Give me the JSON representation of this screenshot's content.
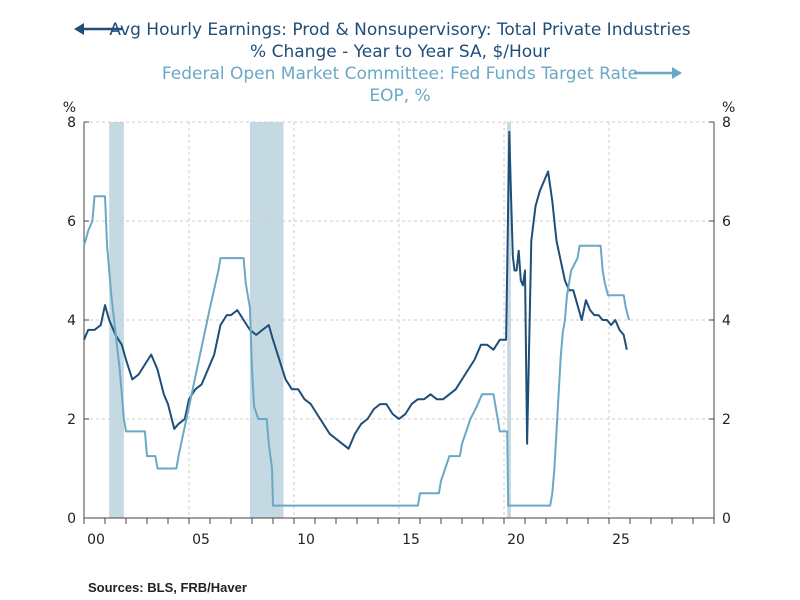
{
  "legend": {
    "series1_line1": "Avg Hourly Earnings: Prod & Nonsupervisory: Total Private Industries",
    "series1_line2": "% Change - Year to Year    SA, $/Hour",
    "series2_line1": "Federal Open Market Committee: Fed Funds Target Rate",
    "series2_line2": "EOP, %"
  },
  "source": "Sources:  BLS, FRB/Haver",
  "colors": {
    "earnings": "#1f4e79",
    "fedfunds": "#6aa8c4",
    "recession": "#c5d9e3",
    "grid": "#cccccc"
  },
  "chart_data": {
    "type": "line",
    "x_unit": "year",
    "xlim": [
      2000,
      2030
    ],
    "x_tick_labels": [
      "00",
      "05",
      "10",
      "15",
      "20",
      "25"
    ],
    "x_tick_values": [
      2000,
      2005,
      2010,
      2015,
      2020,
      2025
    ],
    "y_left": {
      "unit": "%",
      "ylim": [
        0,
        8
      ],
      "ticks": [
        "0",
        "2",
        "4",
        "6",
        "8"
      ]
    },
    "y_right": {
      "unit": "%",
      "ylim": [
        0,
        8
      ],
      "ticks": [
        "0",
        "2",
        "4",
        "6",
        "8"
      ]
    },
    "grid": true,
    "recessions": [
      [
        2001.2,
        2001.9
      ],
      [
        2007.9,
        2009.5
      ],
      [
        2020.15,
        2020.33
      ]
    ],
    "series": [
      {
        "axis": "left",
        "x": [
          2000.0,
          2000.2,
          2000.5,
          2000.8,
          2001.0,
          2001.2,
          2001.5,
          2001.8,
          2002.0,
          2002.3,
          2002.6,
          2002.9,
          2003.2,
          2003.5,
          2003.8,
          2004.0,
          2004.3,
          2004.5,
          2004.8,
          2005.0,
          2005.3,
          2005.6,
          2005.9,
          2006.2,
          2006.5,
          2006.8,
          2007.0,
          2007.3,
          2007.6,
          2007.9,
          2008.2,
          2008.5,
          2008.8,
          2009.0,
          2009.3,
          2009.6,
          2009.9,
          2010.2,
          2010.5,
          2010.8,
          2011.1,
          2011.4,
          2011.7,
          2012.0,
          2012.3,
          2012.6,
          2012.9,
          2013.2,
          2013.5,
          2013.8,
          2014.1,
          2014.4,
          2014.7,
          2015.0,
          2015.3,
          2015.6,
          2015.9,
          2016.2,
          2016.5,
          2016.8,
          2017.1,
          2017.4,
          2017.7,
          2018.0,
          2018.3,
          2018.6,
          2018.9,
          2019.2,
          2019.5,
          2019.8,
          2020.1,
          2020.25,
          2020.33,
          2020.42,
          2020.5,
          2020.6,
          2020.7,
          2020.8,
          2020.9,
          2021.0,
          2021.1,
          2021.3,
          2021.5,
          2021.7,
          2021.9,
          2022.1,
          2022.3,
          2022.5,
          2022.7,
          2022.9,
          2023.1,
          2023.3,
          2023.5,
          2023.7,
          2023.9,
          2024.1,
          2024.3,
          2024.5,
          2024.7,
          2024.9,
          2025.1,
          2025.3,
          2025.5,
          2025.7,
          2025.85
        ],
        "y": [
          3.6,
          3.8,
          3.8,
          3.9,
          4.3,
          4.0,
          3.7,
          3.5,
          3.2,
          2.8,
          2.9,
          3.1,
          3.3,
          3.0,
          2.5,
          2.3,
          1.8,
          1.9,
          2.0,
          2.4,
          2.6,
          2.7,
          3.0,
          3.3,
          3.9,
          4.1,
          4.1,
          4.2,
          4.0,
          3.8,
          3.7,
          3.8,
          3.9,
          3.6,
          3.2,
          2.8,
          2.6,
          2.6,
          2.4,
          2.3,
          2.1,
          1.9,
          1.7,
          1.6,
          1.5,
          1.4,
          1.7,
          1.9,
          2.0,
          2.2,
          2.3,
          2.3,
          2.1,
          2.0,
          2.1,
          2.3,
          2.4,
          2.4,
          2.5,
          2.4,
          2.4,
          2.5,
          2.6,
          2.8,
          3.0,
          3.2,
          3.5,
          3.5,
          3.4,
          3.6,
          3.6,
          7.8,
          6.6,
          5.3,
          5.0,
          5.0,
          5.4,
          4.8,
          4.7,
          5.0,
          1.5,
          5.6,
          6.3,
          6.6,
          6.8,
          7.0,
          6.4,
          5.6,
          5.2,
          4.8,
          4.6,
          4.6,
          4.3,
          4.0,
          4.4,
          4.2,
          4.1,
          4.1,
          4.0,
          4.0,
          3.9,
          4.0,
          3.8,
          3.7,
          3.4
        ]
      },
      {
        "axis": "right",
        "x": [
          2000.0,
          2000.2,
          2000.4,
          2000.5,
          2001.0,
          2001.1,
          2001.3,
          2001.5,
          2001.7,
          2001.9,
          2002.0,
          2002.9,
          2003.0,
          2003.4,
          2003.5,
          2004.4,
          2004.5,
          2005.0,
          2005.5,
          2006.0,
          2006.4,
          2006.5,
          2007.6,
          2007.7,
          2007.8,
          2007.9,
          2008.0,
          2008.1,
          2008.3,
          2008.7,
          2008.8,
          2008.95,
          2009.0,
          2015.9,
          2016.0,
          2016.9,
          2017.0,
          2017.2,
          2017.4,
          2017.9,
          2018.0,
          2018.2,
          2018.4,
          2018.7,
          2018.95,
          2019.5,
          2019.6,
          2019.8,
          2020.15,
          2020.2,
          2022.2,
          2022.3,
          2022.4,
          2022.5,
          2022.6,
          2022.7,
          2022.8,
          2022.9,
          2023.0,
          2023.2,
          2023.5,
          2023.6,
          2024.6,
          2024.7,
          2024.8,
          2024.95,
          2025.0,
          2025.7,
          2025.8,
          2025.95
        ],
        "y": [
          5.5,
          5.8,
          6.0,
          6.5,
          6.5,
          5.5,
          4.5,
          3.75,
          3.0,
          2.0,
          1.75,
          1.75,
          1.25,
          1.25,
          1.0,
          1.0,
          1.25,
          2.25,
          3.25,
          4.25,
          5.0,
          5.25,
          5.25,
          4.75,
          4.5,
          4.25,
          3.0,
          2.25,
          2.0,
          2.0,
          1.5,
          1.0,
          0.25,
          0.25,
          0.5,
          0.5,
          0.75,
          1.0,
          1.25,
          1.25,
          1.5,
          1.75,
          2.0,
          2.25,
          2.5,
          2.5,
          2.25,
          1.75,
          1.75,
          0.25,
          0.25,
          0.5,
          1.0,
          1.75,
          2.5,
          3.25,
          3.75,
          4.0,
          4.5,
          5.0,
          5.25,
          5.5,
          5.5,
          5.0,
          4.75,
          4.5,
          4.5,
          4.5,
          4.25,
          4.0
        ]
      }
    ]
  }
}
